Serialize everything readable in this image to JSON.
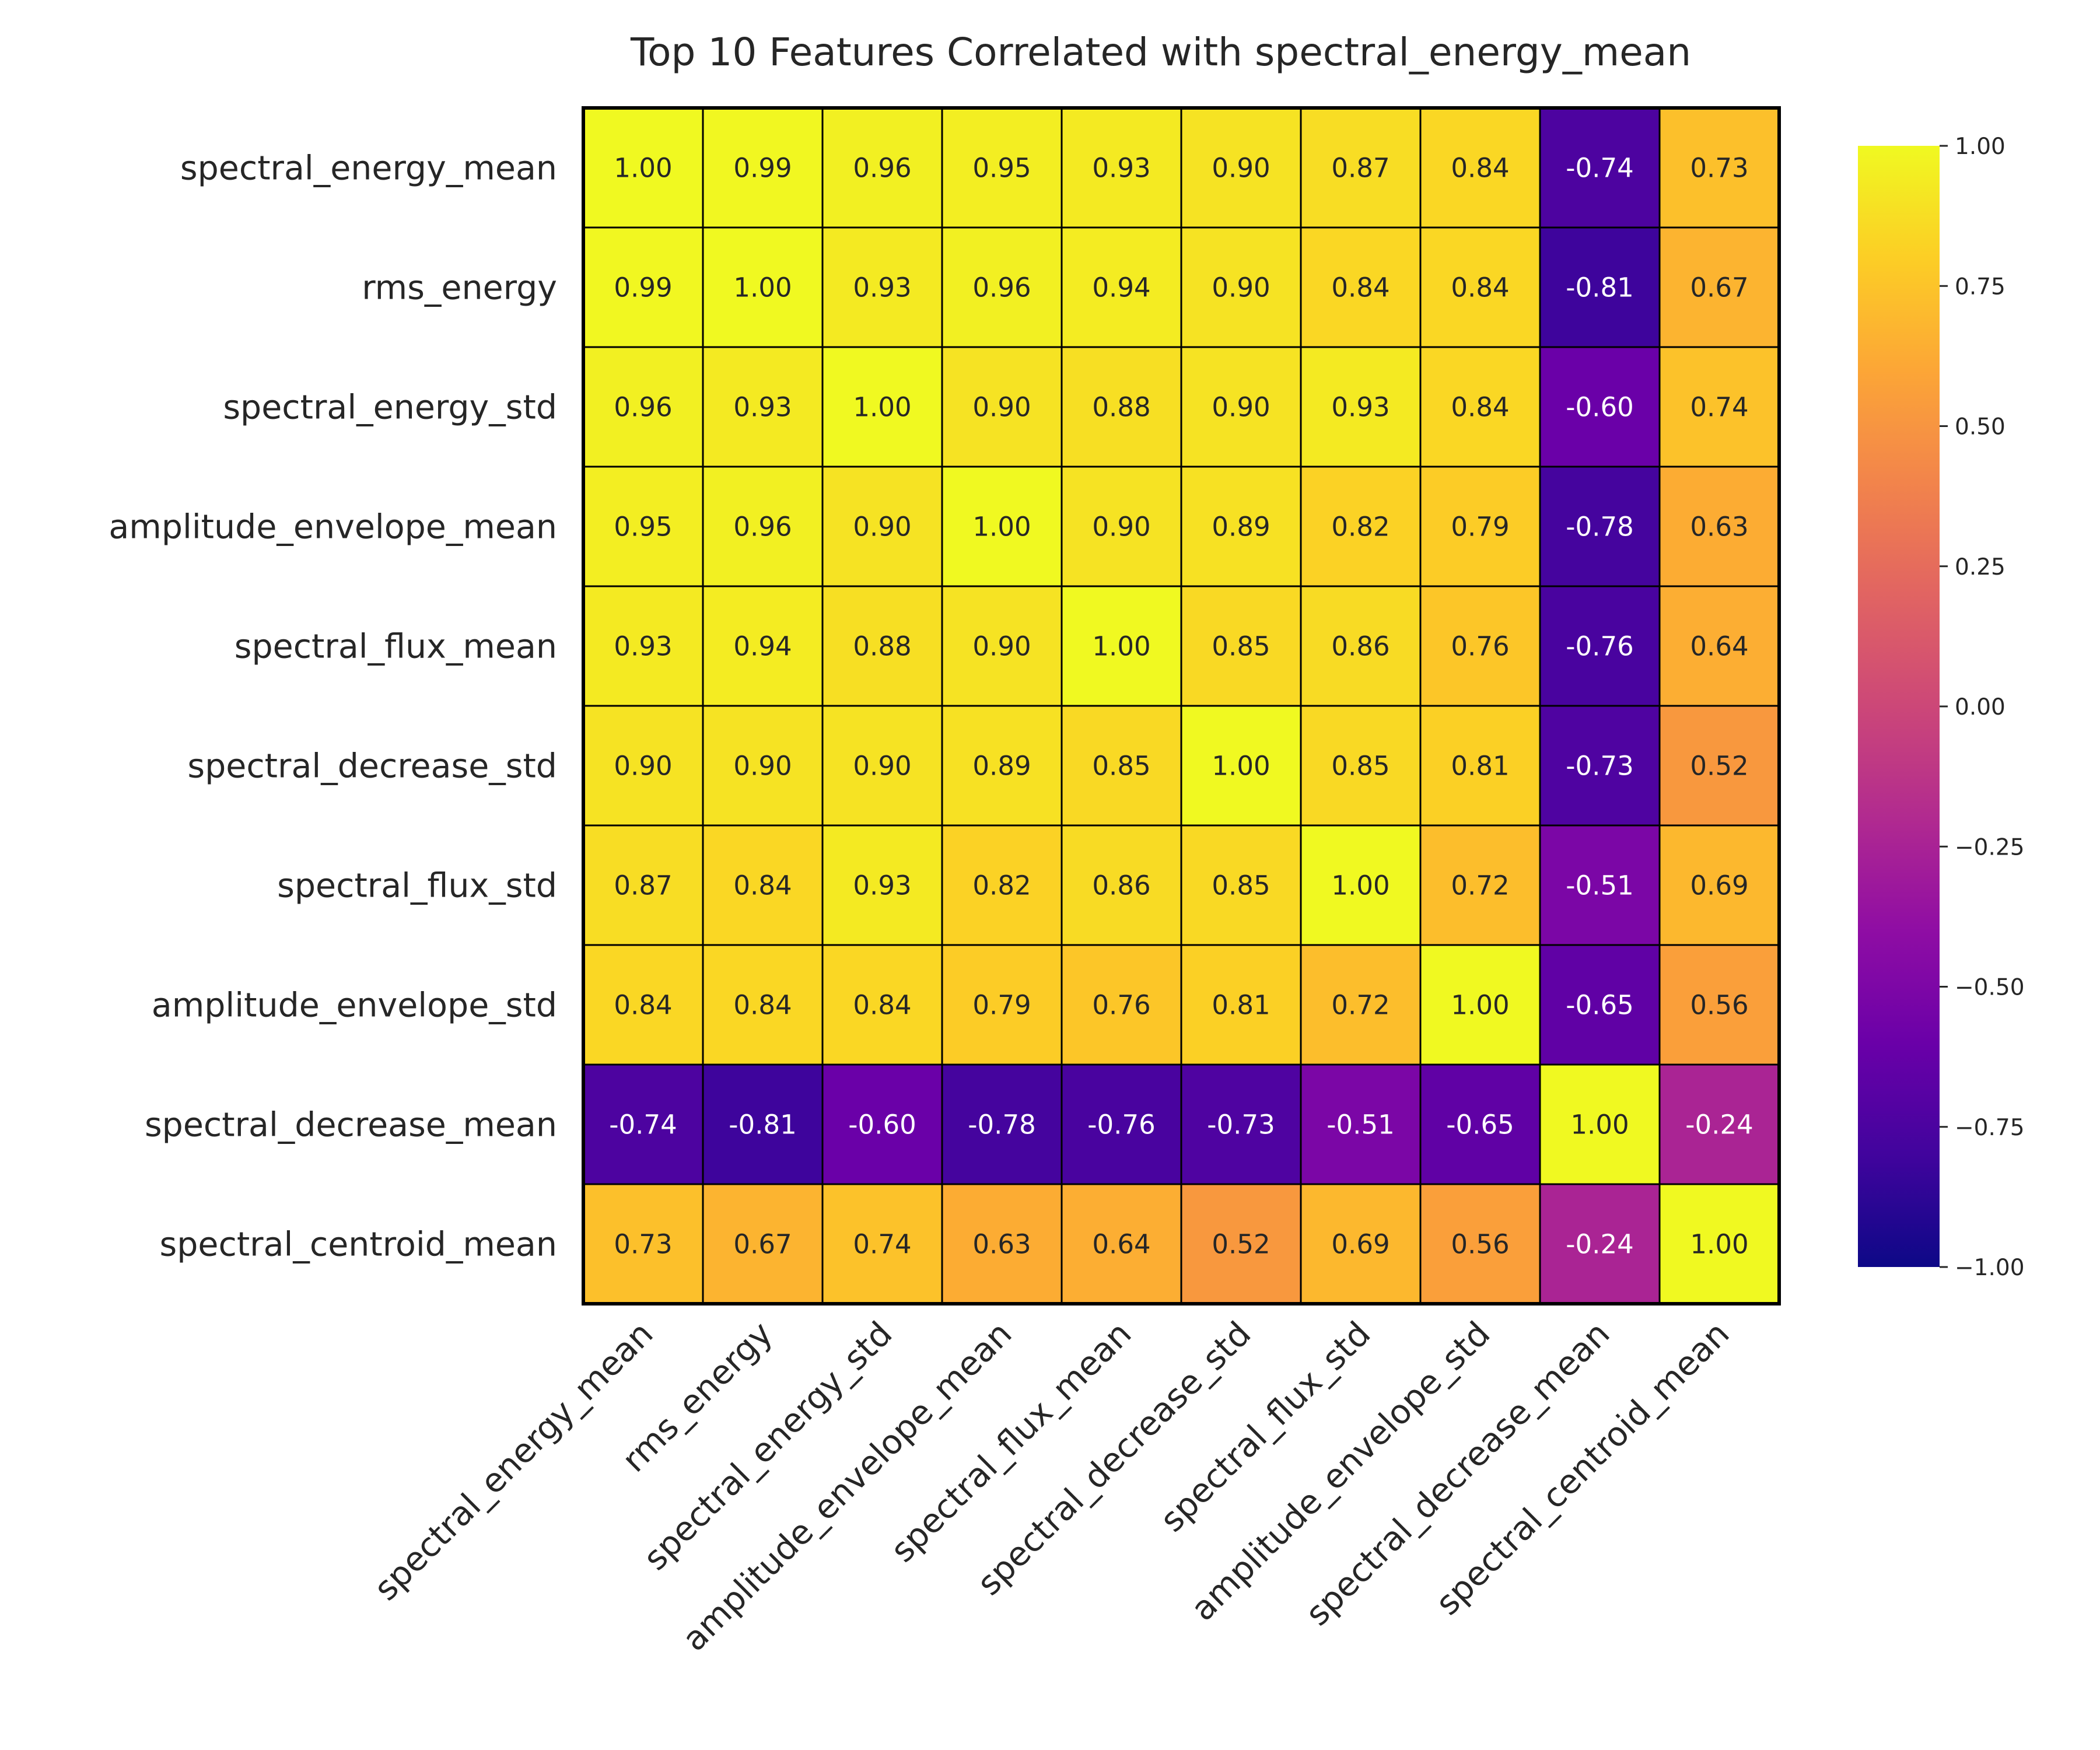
{
  "chart_data": {
    "type": "heatmap",
    "title": "Top 10 Features Correlated with spectral_energy_mean",
    "row_labels": [
      "spectral_energy_mean",
      "rms_energy",
      "spectral_energy_std",
      "amplitude_envelope_mean",
      "spectral_flux_mean",
      "spectral_decrease_std",
      "spectral_flux_std",
      "amplitude_envelope_std",
      "spectral_decrease_mean",
      "spectral_centroid_mean"
    ],
    "col_labels": [
      "spectral_energy_mean",
      "rms_energy",
      "spectral_energy_std",
      "amplitude_envelope_mean",
      "spectral_flux_mean",
      "spectral_decrease_std",
      "spectral_flux_std",
      "amplitude_envelope_std",
      "spectral_decrease_mean",
      "spectral_centroid_mean"
    ],
    "values": [
      [
        1.0,
        0.99,
        0.96,
        0.95,
        0.93,
        0.9,
        0.87,
        0.84,
        -0.74,
        0.73
      ],
      [
        0.99,
        1.0,
        0.93,
        0.96,
        0.94,
        0.9,
        0.84,
        0.84,
        -0.81,
        0.67
      ],
      [
        0.96,
        0.93,
        1.0,
        0.9,
        0.88,
        0.9,
        0.93,
        0.84,
        -0.6,
        0.74
      ],
      [
        0.95,
        0.96,
        0.9,
        1.0,
        0.9,
        0.89,
        0.82,
        0.79,
        -0.78,
        0.63
      ],
      [
        0.93,
        0.94,
        0.88,
        0.9,
        1.0,
        0.85,
        0.86,
        0.76,
        -0.76,
        0.64
      ],
      [
        0.9,
        0.9,
        0.9,
        0.89,
        0.85,
        1.0,
        0.85,
        0.81,
        -0.73,
        0.52
      ],
      [
        0.87,
        0.84,
        0.93,
        0.82,
        0.86,
        0.85,
        1.0,
        0.72,
        -0.51,
        0.69
      ],
      [
        0.84,
        0.84,
        0.84,
        0.79,
        0.76,
        0.81,
        0.72,
        1.0,
        -0.65,
        0.56
      ],
      [
        -0.74,
        -0.81,
        -0.6,
        -0.78,
        -0.76,
        -0.73,
        -0.51,
        -0.65,
        1.0,
        -0.24
      ],
      [
        0.73,
        0.67,
        0.74,
        0.63,
        0.64,
        0.52,
        0.69,
        0.56,
        -0.24,
        1.0
      ]
    ],
    "value_format": "2 decimals",
    "colormap": "plasma",
    "vmin": -1.0,
    "vmax": 1.0,
    "colorbar": {
      "ticks": [
        1.0,
        0.75,
        0.5,
        0.25,
        0.0,
        -0.25,
        -0.5,
        -0.75,
        -1.0
      ],
      "tick_labels": [
        "1.00",
        "0.75",
        "0.50",
        "0.25",
        "0.00",
        "−0.25",
        "−0.50",
        "−0.75",
        "−1.00"
      ],
      "placement": "right"
    },
    "grid": true,
    "gridline_color": "#000000",
    "label_color_light": "#ffffff",
    "label_color_dark": "#262626"
  }
}
